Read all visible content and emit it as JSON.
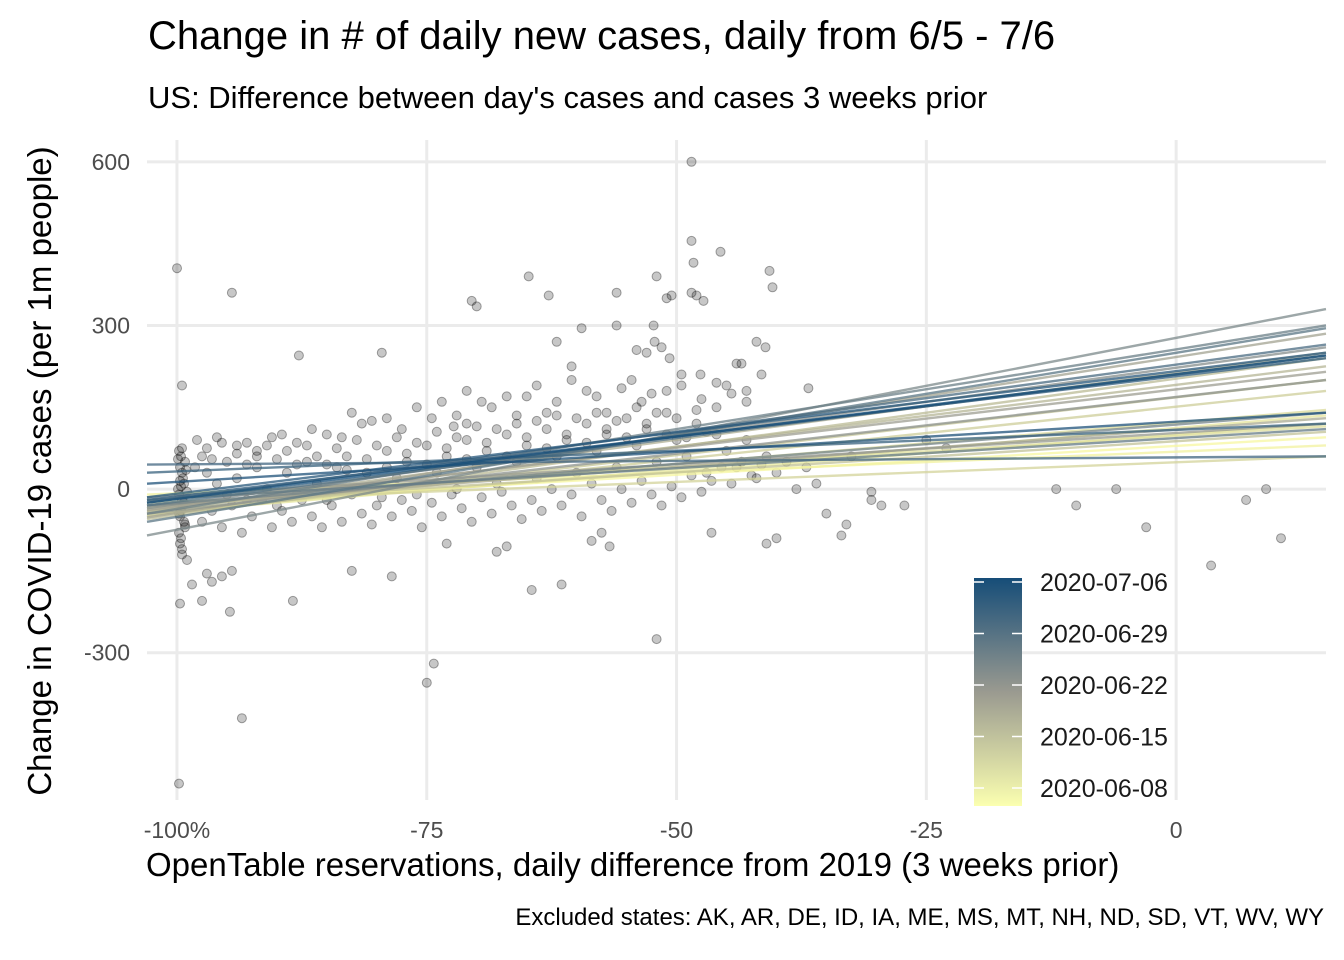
{
  "chart_data": {
    "type": "scatter",
    "title": "Change in # of daily new cases, daily from 6/5 - 7/6",
    "subtitle": "US: Difference between day's cases and cases 3 weeks prior",
    "xlabel": "OpenTable reservations, daily difference from 2019 (3 weeks prior)",
    "ylabel": "Change in COVID-19 cases (per 1m people)",
    "caption": "Excluded states: AK, AR, DE, ID, IA, ME, MS, MT, NH, ND, SD, VT, WV, WY",
    "xlim": [
      -103,
      15
    ],
    "ylim": [
      -570,
      640
    ],
    "x_ticks": [
      {
        "value": -100,
        "label": "-100%"
      },
      {
        "value": -75,
        "label": "-75"
      },
      {
        "value": -50,
        "label": "-50"
      },
      {
        "value": -25,
        "label": "-25"
      },
      {
        "value": 0,
        "label": "0"
      }
    ],
    "y_ticks": [
      {
        "value": 600,
        "label": "600"
      },
      {
        "value": 300,
        "label": "300"
      },
      {
        "value": 0,
        "label": "0"
      },
      {
        "value": -300,
        "label": "-300"
      }
    ],
    "grid": true,
    "point_color": "#000000",
    "point_opacity": 0.22,
    "points": [
      [
        -100,
        405
      ],
      [
        -99.8,
        -540
      ],
      [
        -99.5,
        190
      ],
      [
        -99.7,
        -210
      ],
      [
        -97.5,
        -205
      ],
      [
        -94.7,
        -225
      ],
      [
        -93.5,
        -420
      ],
      [
        -94.5,
        360
      ],
      [
        -88.4,
        -205
      ],
      [
        -87.8,
        245
      ],
      [
        -79.5,
        250
      ],
      [
        -75,
        -355
      ],
      [
        -74.3,
        -320
      ],
      [
        -72.3,
        115
      ],
      [
        -71,
        120
      ],
      [
        -70.5,
        345
      ],
      [
        -70,
        335
      ],
      [
        -64.8,
        390
      ],
      [
        -62.8,
        355
      ],
      [
        -62,
        270
      ],
      [
        -60.5,
        225
      ],
      [
        -59.5,
        295
      ],
      [
        -56,
        360
      ],
      [
        -56,
        300
      ],
      [
        -54,
        255
      ],
      [
        -53,
        250
      ],
      [
        -52.3,
        300
      ],
      [
        -52.2,
        270
      ],
      [
        -52,
        390
      ],
      [
        -51.5,
        260
      ],
      [
        -51,
        350
      ],
      [
        -50.5,
        355
      ],
      [
        -50.7,
        240
      ],
      [
        -49.5,
        210
      ],
      [
        -48.5,
        600
      ],
      [
        -48.5,
        455
      ],
      [
        -48.3,
        415
      ],
      [
        -48.5,
        360
      ],
      [
        -48,
        355
      ],
      [
        -47.3,
        345
      ],
      [
        -47.6,
        210
      ],
      [
        -46,
        195
      ],
      [
        -45,
        190
      ],
      [
        -44,
        230
      ],
      [
        -43.5,
        230
      ],
      [
        -43,
        180
      ],
      [
        -42,
        270
      ],
      [
        -41.5,
        210
      ],
      [
        -41.1,
        260
      ],
      [
        -40.7,
        400
      ],
      [
        -40.4,
        370
      ],
      [
        -36.8,
        185
      ],
      [
        -45.6,
        435
      ],
      [
        -52,
        -275
      ],
      [
        -64.5,
        -185
      ],
      [
        -61.5,
        -175
      ],
      [
        -56.7,
        -105
      ],
      [
        -46.5,
        -80
      ],
      [
        -41,
        -100
      ],
      [
        -40,
        -90
      ],
      [
        -35,
        -45
      ],
      [
        -33.5,
        -85
      ],
      [
        -33,
        -65
      ],
      [
        -32.5,
        60
      ],
      [
        -30.5,
        -5
      ],
      [
        -30.5,
        -20
      ],
      [
        -29.5,
        -30
      ],
      [
        -27.2,
        -30
      ],
      [
        -25,
        90
      ],
      [
        -23,
        75
      ],
      [
        -12,
        0
      ],
      [
        -10,
        -30
      ],
      [
        -3,
        -70
      ],
      [
        -6,
        0
      ],
      [
        3.5,
        -140
      ],
      [
        7,
        -20
      ],
      [
        9,
        0
      ],
      [
        10.5,
        -90
      ],
      [
        -82.5,
        -150
      ],
      [
        -78.5,
        -160
      ],
      [
        -73,
        -100
      ],
      [
        -68,
        -115
      ],
      [
        -67,
        -105
      ],
      [
        -58.5,
        -95
      ],
      [
        -57.5,
        -80
      ],
      [
        -94.5,
        -150
      ],
      [
        -96.5,
        -170
      ],
      [
        -97,
        -155
      ],
      [
        -95.5,
        -160
      ],
      [
        -98.5,
        -175
      ],
      [
        -99,
        -130
      ],
      [
        -99.5,
        -120
      ],
      [
        -99.7,
        -100
      ],
      [
        -99.8,
        -80
      ],
      [
        -99.3,
        -60
      ],
      [
        -99.6,
        -40
      ],
      [
        -99.5,
        -20
      ],
      [
        -99.9,
        0
      ],
      [
        -99.4,
        20
      ],
      [
        -99.7,
        40
      ],
      [
        -99.6,
        60
      ],
      [
        -99.5,
        75
      ],
      [
        -99.8,
        70
      ],
      [
        -99.2,
        50
      ],
      [
        -99.5,
        30
      ],
      [
        -99.3,
        10
      ],
      [
        -99.8,
        -10
      ],
      [
        -99.4,
        -30
      ],
      [
        -99.7,
        -50
      ],
      [
        -99.2,
        -70
      ],
      [
        -99.6,
        -90
      ],
      [
        -99.5,
        -110
      ],
      [
        -99.9,
        55
      ],
      [
        -99.1,
        35
      ],
      [
        -99.7,
        15
      ],
      [
        -99.0,
        -5
      ],
      [
        -99.3,
        -25
      ],
      [
        -99.8,
        -45
      ],
      [
        -99.2,
        -65
      ],
      [
        -99.6,
        5
      ],
      [
        -98.2,
        40
      ],
      [
        -97.5,
        60
      ],
      [
        -96.5,
        55
      ],
      [
        -95.5,
        85
      ],
      [
        -94,
        80
      ],
      [
        -93,
        85
      ],
      [
        -92,
        70
      ],
      [
        -90.5,
        95
      ],
      [
        -89.5,
        100
      ],
      [
        -88,
        85
      ],
      [
        -86.5,
        110
      ],
      [
        -85,
        100
      ],
      [
        -83.5,
        95
      ],
      [
        -82.5,
        140
      ],
      [
        -81.5,
        120
      ],
      [
        -80.5,
        125
      ],
      [
        -79,
        130
      ],
      [
        -77.5,
        110
      ],
      [
        -76,
        150
      ],
      [
        -74.5,
        130
      ],
      [
        -73.5,
        160
      ],
      [
        -72,
        135
      ],
      [
        -71,
        180
      ],
      [
        -69.5,
        160
      ],
      [
        -68.5,
        150
      ],
      [
        -67,
        170
      ],
      [
        -66,
        135
      ],
      [
        -65,
        170
      ],
      [
        -64,
        190
      ],
      [
        -63,
        140
      ],
      [
        -62,
        160
      ],
      [
        -60.5,
        200
      ],
      [
        -59,
        180
      ],
      [
        -58,
        170
      ],
      [
        -57,
        140
      ],
      [
        -55.5,
        185
      ],
      [
        -54.5,
        200
      ],
      [
        -53.5,
        160
      ],
      [
        -52.5,
        175
      ],
      [
        -51,
        180
      ],
      [
        -49.5,
        190
      ],
      [
        -47.5,
        165
      ],
      [
        -46,
        150
      ],
      [
        -44.5,
        175
      ],
      [
        -43,
        160
      ],
      [
        -97,
        30
      ],
      [
        -96,
        10
      ],
      [
        -95,
        -10
      ],
      [
        -94,
        20
      ],
      [
        -93,
        -20
      ],
      [
        -92,
        40
      ],
      [
        -91,
        0
      ],
      [
        -90,
        -30
      ],
      [
        -89,
        30
      ],
      [
        -88,
        -10
      ],
      [
        -87,
        50
      ],
      [
        -86,
        10
      ],
      [
        -85,
        -20
      ],
      [
        -84,
        40
      ],
      [
        -83,
        60
      ],
      [
        -82,
        0
      ],
      [
        -81,
        30
      ],
      [
        -80,
        -30
      ],
      [
        -79,
        70
      ],
      [
        -78,
        20
      ],
      [
        -77,
        50
      ],
      [
        -76,
        -10
      ],
      [
        -75,
        80
      ],
      [
        -74,
        30
      ],
      [
        -73,
        60
      ],
      [
        -72,
        0
      ],
      [
        -71,
        90
      ],
      [
        -70,
        40
      ],
      [
        -69,
        70
      ],
      [
        -68,
        10
      ],
      [
        -67,
        100
      ],
      [
        -66,
        50
      ],
      [
        -65,
        80
      ],
      [
        -64,
        20
      ],
      [
        -63,
        110
      ],
      [
        -62,
        60
      ],
      [
        -61,
        90
      ],
      [
        -60,
        30
      ],
      [
        -59,
        120
      ],
      [
        -58,
        70
      ],
      [
        -57,
        100
      ],
      [
        -56,
        40
      ],
      [
        -55,
        130
      ],
      [
        -54,
        80
      ],
      [
        -53,
        110
      ],
      [
        -52,
        50
      ],
      [
        -51,
        140
      ],
      [
        -50,
        90
      ],
      [
        -49,
        60
      ],
      [
        -48,
        120
      ],
      [
        -47,
        30
      ],
      [
        -46,
        100
      ],
      [
        -45,
        70
      ],
      [
        -44,
        40
      ],
      [
        -43,
        90
      ],
      [
        -42,
        20
      ],
      [
        -41,
        60
      ],
      [
        -40,
        30
      ],
      [
        -39,
        50
      ],
      [
        -38,
        0
      ],
      [
        -37,
        40
      ],
      [
        -36,
        10
      ],
      [
        -97.5,
        -60
      ],
      [
        -96.5,
        -40
      ],
      [
        -95.5,
        -70
      ],
      [
        -94.5,
        -30
      ],
      [
        -93.5,
        -80
      ],
      [
        -92.5,
        -50
      ],
      [
        -91.5,
        -20
      ],
      [
        -90.5,
        -70
      ],
      [
        -89.5,
        -40
      ],
      [
        -88.5,
        -60
      ],
      [
        -87.5,
        -20
      ],
      [
        -86.5,
        -50
      ],
      [
        -85.5,
        -70
      ],
      [
        -84.5,
        -30
      ],
      [
        -83.5,
        -60
      ],
      [
        -82.5,
        -10
      ],
      [
        -81.5,
        -45
      ],
      [
        -80.5,
        -65
      ],
      [
        -79.5,
        -15
      ],
      [
        -78.5,
        -50
      ],
      [
        -77.5,
        -20
      ],
      [
        -76.5,
        -40
      ],
      [
        -75.5,
        -70
      ],
      [
        -74.5,
        -25
      ],
      [
        -73.5,
        -50
      ],
      [
        -72.5,
        -10
      ],
      [
        -71.5,
        -35
      ],
      [
        -70.5,
        -60
      ],
      [
        -69.5,
        -15
      ],
      [
        -68.5,
        -45
      ],
      [
        -67.5,
        -5
      ],
      [
        -66.5,
        -30
      ],
      [
        -65.5,
        -55
      ],
      [
        -64.5,
        -20
      ],
      [
        -63.5,
        -40
      ],
      [
        -62.5,
        0
      ],
      [
        -61.5,
        -30
      ],
      [
        -60.5,
        -10
      ],
      [
        -59.5,
        -50
      ],
      [
        -58.5,
        10
      ],
      [
        -57.5,
        -20
      ],
      [
        -56.5,
        -40
      ],
      [
        -55.5,
        0
      ],
      [
        -54.5,
        -25
      ],
      [
        -53.5,
        15
      ],
      [
        -52.5,
        -10
      ],
      [
        -51.5,
        -30
      ],
      [
        -50.5,
        5
      ],
      [
        -49.5,
        -15
      ],
      [
        -48.5,
        25
      ],
      [
        -47.5,
        -5
      ],
      [
        -46.5,
        15
      ],
      [
        -45.5,
        40
      ],
      [
        -44.5,
        10
      ],
      [
        -43.5,
        50
      ],
      [
        -42.5,
        25
      ],
      [
        -41.5,
        45
      ],
      [
        -98,
        90
      ],
      [
        -97,
        75
      ],
      [
        -96,
        95
      ],
      [
        -95,
        50
      ],
      [
        -94,
        65
      ],
      [
        -93,
        45
      ],
      [
        -92,
        60
      ],
      [
        -91,
        80
      ],
      [
        -90,
        55
      ],
      [
        -89,
        70
      ],
      [
        -88,
        45
      ],
      [
        -87,
        80
      ],
      [
        -86,
        60
      ],
      [
        -85,
        45
      ],
      [
        -84,
        75
      ],
      [
        -83,
        35
      ],
      [
        -82,
        90
      ],
      [
        -81,
        55
      ],
      [
        -80,
        80
      ],
      [
        -79,
        40
      ],
      [
        -78,
        95
      ],
      [
        -77,
        65
      ],
      [
        -76,
        85
      ],
      [
        -75,
        45
      ],
      [
        -74,
        105
      ],
      [
        -73,
        75
      ],
      [
        -72,
        95
      ],
      [
        -71,
        55
      ],
      [
        -70,
        115
      ],
      [
        -69,
        85
      ],
      [
        -68,
        110
      ],
      [
        -67,
        60
      ],
      [
        -66,
        120
      ],
      [
        -65,
        95
      ],
      [
        -64,
        125
      ],
      [
        -63,
        75
      ],
      [
        -62,
        135
      ],
      [
        -61,
        100
      ],
      [
        -60,
        130
      ],
      [
        -59,
        85
      ],
      [
        -58,
        140
      ],
      [
        -57,
        110
      ],
      [
        -56,
        125
      ],
      [
        -55,
        95
      ],
      [
        -54,
        150
      ],
      [
        -53,
        120
      ],
      [
        -52,
        140
      ],
      [
        -51,
        100
      ],
      [
        -50,
        130
      ],
      [
        -49,
        95
      ],
      [
        -48,
        145
      ],
      [
        -47,
        105
      ]
    ],
    "series_note_colors": {
      "low": "#f7f7a0",
      "mid": "#9a9a90",
      "high": "#164d78"
    },
    "regression_lines": [
      {
        "date": "2020-06-05",
        "y_left": -30,
        "y_right": 95
      },
      {
        "date": "2020-06-06",
        "y_left": -10,
        "y_right": 80
      },
      {
        "date": "2020-06-07",
        "y_left": -40,
        "y_right": 120
      },
      {
        "date": "2020-06-08",
        "y_left": -45,
        "y_right": 135
      },
      {
        "date": "2020-06-09",
        "y_left": -20,
        "y_right": 115
      },
      {
        "date": "2020-06-10",
        "y_left": -35,
        "y_right": 145
      },
      {
        "date": "2020-06-11",
        "y_left": -25,
        "y_right": 60
      },
      {
        "date": "2020-06-12",
        "y_left": -48,
        "y_right": 180
      },
      {
        "date": "2020-06-13",
        "y_left": -50,
        "y_right": 200
      },
      {
        "date": "2020-06-14",
        "y_left": -30,
        "y_right": 105
      },
      {
        "date": "2020-06-15",
        "y_left": -55,
        "y_right": 240
      },
      {
        "date": "2020-06-16",
        "y_left": -42,
        "y_right": 225
      },
      {
        "date": "2020-06-17",
        "y_left": -40,
        "y_right": 250
      },
      {
        "date": "2020-06-18",
        "y_left": -32,
        "y_right": 130
      },
      {
        "date": "2020-06-19",
        "y_left": -52,
        "y_right": 285
      },
      {
        "date": "2020-06-20",
        "y_left": -38,
        "y_right": 215
      },
      {
        "date": "2020-06-21",
        "y_left": -15,
        "y_right": 120
      },
      {
        "date": "2020-06-22",
        "y_left": -45,
        "y_right": 200
      },
      {
        "date": "2020-06-23",
        "y_left": -35,
        "y_right": 260
      },
      {
        "date": "2020-06-24",
        "y_left": -85,
        "y_right": 330
      },
      {
        "date": "2020-06-25",
        "y_left": -30,
        "y_right": 140
      },
      {
        "date": "2020-06-26",
        "y_left": -45,
        "y_right": 300
      },
      {
        "date": "2020-06-27",
        "y_left": -20,
        "y_right": 110
      },
      {
        "date": "2020-06-28",
        "y_left": -60,
        "y_right": 295
      },
      {
        "date": "2020-06-29",
        "y_left": -30,
        "y_right": 245
      },
      {
        "date": "2020-06-30",
        "y_left": -25,
        "y_right": 265
      },
      {
        "date": "2020-07-01",
        "y_left": 45,
        "y_right": 60
      },
      {
        "date": "2020-07-02",
        "y_left": 30,
        "y_right": 120
      },
      {
        "date": "2020-07-03",
        "y_left": -20,
        "y_right": 240
      },
      {
        "date": "2020-07-04",
        "y_left": -15,
        "y_right": 250
      },
      {
        "date": "2020-07-05",
        "y_left": 10,
        "y_right": 140
      },
      {
        "date": "2020-07-06",
        "y_left": -25,
        "y_right": 245
      }
    ],
    "legend": {
      "position": "bottom-right",
      "labels": [
        "2020-07-06",
        "2020-06-29",
        "2020-06-22",
        "2020-06-15",
        "2020-06-08"
      ],
      "gradient_top": "#164d78",
      "gradient_mid": "#9a9a90",
      "gradient_bottom": "#fbffb0"
    }
  }
}
